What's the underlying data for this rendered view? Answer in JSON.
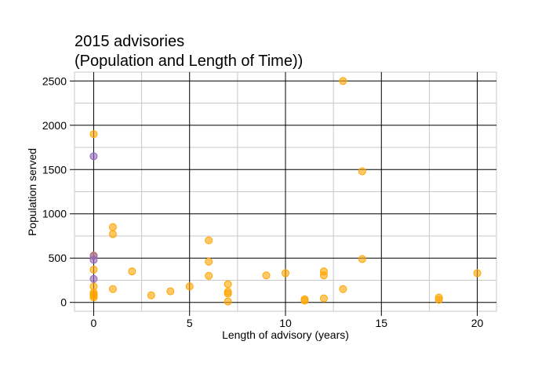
{
  "chart_data": {
    "type": "scatter",
    "title_lines": [
      "2015 advisories",
      "(Population and Length of Time))"
    ],
    "xlabel": "Length of advisory (years)",
    "ylabel": "Population served",
    "xlim": [
      -1,
      21
    ],
    "ylim": [
      -100,
      2600
    ],
    "x_ticks": [
      0,
      5,
      10,
      15,
      20
    ],
    "y_ticks": [
      0,
      500,
      1000,
      1500,
      2000,
      2500
    ],
    "grid": true,
    "legend": "none",
    "series": [
      {
        "color": "#ffa500",
        "points": [
          [
            0,
            1900
          ],
          [
            0,
            530
          ],
          [
            0,
            370
          ],
          [
            0,
            180
          ],
          [
            0,
            110
          ],
          [
            0,
            90
          ],
          [
            0,
            75
          ],
          [
            0,
            55
          ],
          [
            1,
            850
          ],
          [
            1,
            770
          ],
          [
            1,
            150
          ],
          [
            2,
            350
          ],
          [
            3,
            80
          ],
          [
            4,
            125
          ],
          [
            5,
            180
          ],
          [
            6,
            700
          ],
          [
            6,
            460
          ],
          [
            6,
            300
          ],
          [
            7,
            205
          ],
          [
            7,
            120
          ],
          [
            7,
            100
          ],
          [
            7,
            10
          ],
          [
            9,
            305
          ],
          [
            10,
            330
          ],
          [
            11,
            35
          ],
          [
            11,
            20
          ],
          [
            12,
            350
          ],
          [
            12,
            305
          ],
          [
            12,
            45
          ],
          [
            13,
            2500
          ],
          [
            13,
            150
          ],
          [
            14,
            1480
          ],
          [
            14,
            490
          ],
          [
            18,
            55
          ],
          [
            18,
            30
          ],
          [
            20,
            330
          ]
        ]
      },
      {
        "color": "#9467bd",
        "points": [
          [
            0,
            1650
          ],
          [
            0,
            525
          ],
          [
            0,
            480
          ],
          [
            0,
            265
          ]
        ]
      }
    ]
  }
}
